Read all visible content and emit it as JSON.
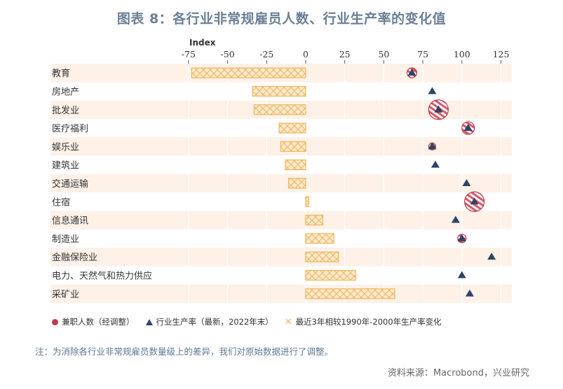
{
  "title": "图表 8：各行业非常规雇员人数、行业生产率的变化值",
  "axis_label": "Index",
  "legend": [
    {
      "label": "兼职人数（经调整）",
      "icon": "red-circle",
      "color": "#c0394b"
    },
    {
      "label": "行业生产率（最新，2022年末）",
      "icon": "navy-triangle",
      "color": "#2e4467"
    },
    {
      "label": "最近3年相较1990年-2000年生产率变化",
      "icon": "orange-crosshatch",
      "color": "#f0b55a"
    }
  ],
  "note": "注：为消除各行业非常规雇员数量级上的差异，我们对原始数据进行了调整。",
  "source": "资料来源：Macrobond，兴业研究",
  "colors": {
    "band": "#fdf1e8",
    "bar": "#f0b55a",
    "bar_fill": "#fde6c4",
    "triangle": "#2e4467",
    "circle": "#c0394b",
    "title": "#6b7f96"
  },
  "chart_data": {
    "type": "bar",
    "title": "图表 8：各行业非常规雇员人数、行业生产率的变化值",
    "xlabel": "Index",
    "ylabel": "",
    "orientation": "horizontal",
    "xlim": [
      -80,
      130
    ],
    "xticks": [
      -75,
      -50,
      -25,
      0,
      25,
      50,
      75,
      100,
      125
    ],
    "grid": true,
    "legend_position": "bottom",
    "categories": [
      "教育",
      "房地产",
      "批发业",
      "医疗福利",
      "娱乐业",
      "建筑业",
      "交通运输",
      "住宿",
      "信息通讯",
      "制造业",
      "金融保险业",
      "电力、天然气和热力供应",
      "采矿业"
    ],
    "series": [
      {
        "name": "最近3年相较1990年-2000年生产率变化",
        "type": "bar",
        "values": [
          -73,
          -34,
          -33,
          -17,
          -16,
          -13,
          -11,
          2,
          11,
          18,
          21,
          32,
          57
        ]
      },
      {
        "name": "行业生产率（最新，2022年末）",
        "type": "scatter",
        "marker": "triangle",
        "values": [
          68,
          81,
          85,
          104,
          81,
          83,
          103,
          108,
          96,
          100,
          119,
          100,
          105
        ]
      },
      {
        "name": "兼职人数（经调整）",
        "type": "bubble",
        "marker": "circle",
        "values": [
          68,
          null,
          85,
          104,
          81,
          null,
          null,
          108,
          null,
          100,
          null,
          null,
          null
        ],
        "sizes": [
          7,
          0,
          14,
          9,
          5,
          0,
          0,
          14,
          0,
          6,
          0,
          0,
          0
        ]
      }
    ]
  }
}
